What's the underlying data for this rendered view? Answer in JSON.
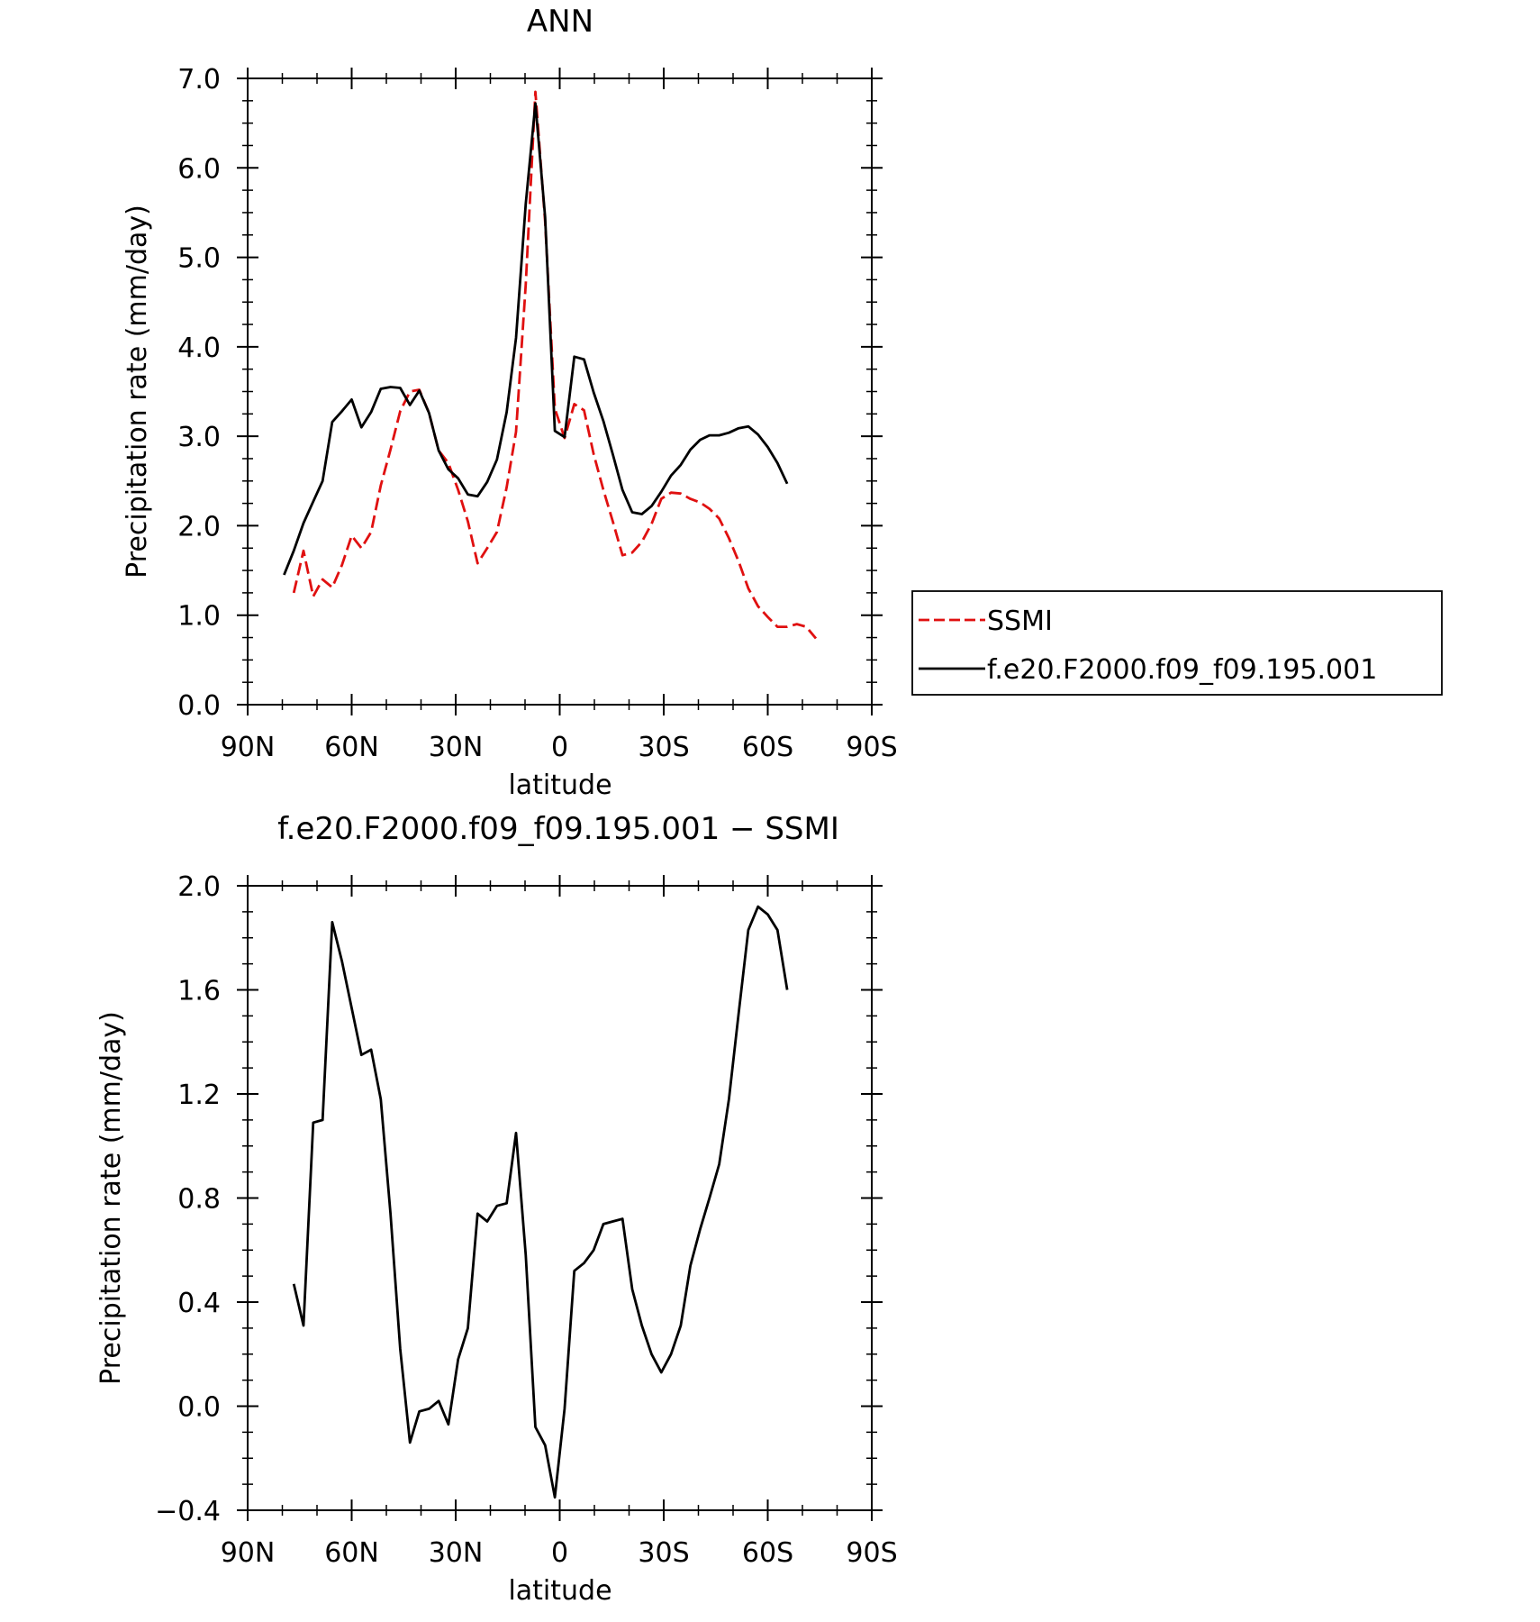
{
  "chart_data": [
    {
      "type": "line",
      "title": "ANN",
      "xlabel": "latitude",
      "ylabel": "Precipitation rate (mm/day)",
      "xlim": [
        90,
        -90
      ],
      "ylim": [
        0,
        7
      ],
      "x_ticks": [
        90,
        60,
        30,
        0,
        -30,
        -60,
        -90
      ],
      "x_tick_labels": [
        "90N",
        "60N",
        "30N",
        "0",
        "30S",
        "60S",
        "90S"
      ],
      "y_ticks": [
        0,
        1,
        2,
        3,
        4,
        5,
        6,
        7
      ],
      "y_tick_labels": [
        "0.0",
        "1.0",
        "2.0",
        "3.0",
        "4.0",
        "5.0",
        "6.0",
        "7.0"
      ],
      "grid": false,
      "legend_position": "right",
      "series": [
        {
          "name": "SSMI",
          "color": "#e01010",
          "dash": "dashed",
          "x": [
            76.7,
            73.9,
            71.1,
            68.4,
            65.6,
            62.8,
            60.0,
            57.2,
            54.4,
            51.6,
            48.8,
            46.0,
            43.2,
            40.5,
            37.7,
            34.9,
            32.1,
            29.3,
            26.5,
            23.7,
            20.9,
            18.1,
            15.3,
            12.6,
            9.8,
            7.0,
            4.2,
            1.4,
            -1.4,
            -4.2,
            -7.0,
            -9.8,
            -12.6,
            -15.3,
            -18.1,
            -20.9,
            -23.7,
            -26.5,
            -29.3,
            -32.1,
            -34.9,
            -37.7,
            -40.5,
            -43.2,
            -46.0,
            -48.8,
            -51.6,
            -54.4,
            -57.2,
            -60.0,
            -62.8,
            -65.6,
            -68.4,
            -71.1,
            -73.9
          ],
          "y": [
            1.25,
            1.72,
            1.21,
            1.4,
            1.31,
            1.56,
            1.89,
            1.75,
            1.93,
            2.45,
            2.85,
            3.28,
            3.5,
            3.52,
            3.26,
            2.84,
            2.7,
            2.4,
            2.05,
            1.58,
            1.75,
            1.93,
            2.43,
            3.05,
            4.7,
            6.85,
            5.4,
            3.31,
            2.98,
            3.36,
            3.29,
            2.8,
            2.4,
            2.05,
            1.67,
            1.7,
            1.82,
            2.02,
            2.3,
            2.37,
            2.36,
            2.3,
            2.26,
            2.19,
            2.08,
            1.86,
            1.6,
            1.3,
            1.1,
            0.98,
            0.87,
            0.87,
            0.9,
            0.87,
            0.74
          ]
        },
        {
          "name": "f.e20.F2000.f09_f09.195.001",
          "color": "#000000",
          "dash": "solid",
          "x": [
            79.5,
            76.7,
            73.9,
            71.1,
            68.4,
            65.6,
            62.8,
            60.0,
            57.2,
            54.4,
            51.6,
            48.8,
            46.0,
            43.2,
            40.5,
            37.7,
            34.9,
            32.1,
            29.3,
            26.5,
            23.7,
            20.9,
            18.1,
            15.3,
            12.6,
            9.8,
            7.0,
            4.2,
            1.4,
            -1.4,
            -4.2,
            -7.0,
            -9.8,
            -12.6,
            -15.3,
            -18.1,
            -20.9,
            -23.7,
            -26.5,
            -29.3,
            -32.1,
            -34.9,
            -37.7,
            -40.5,
            -43.2,
            -46.0,
            -48.8,
            -51.6,
            -54.4,
            -57.2,
            -60.0,
            -62.8,
            -65.6
          ],
          "y": [
            1.45,
            1.72,
            2.03,
            2.27,
            2.5,
            3.16,
            3.28,
            3.41,
            3.1,
            3.27,
            3.53,
            3.55,
            3.54,
            3.35,
            3.51,
            3.26,
            2.84,
            2.63,
            2.53,
            2.35,
            2.33,
            2.49,
            2.74,
            3.27,
            4.1,
            5.6,
            6.72,
            5.45,
            3.06,
            2.99,
            3.89,
            3.86,
            3.49,
            3.17,
            2.8,
            2.4,
            2.15,
            2.13,
            2.22,
            2.38,
            2.56,
            2.68,
            2.85,
            2.96,
            3.01,
            3.01,
            3.04,
            3.09,
            3.11,
            3.02,
            2.88,
            2.7,
            2.47
          ]
        }
      ]
    },
    {
      "type": "line",
      "title": "f.e20.F2000.f09_f09.195.001 − SSMI",
      "xlabel": "latitude",
      "ylabel": "Precipitation rate (mm/day)",
      "xlim": [
        90,
        -90
      ],
      "ylim": [
        -0.4,
        2.0
      ],
      "x_ticks": [
        90,
        60,
        30,
        0,
        -30,
        -60,
        -90
      ],
      "x_tick_labels": [
        "90N",
        "60N",
        "30N",
        "0",
        "30S",
        "60S",
        "90S"
      ],
      "y_ticks": [
        -0.4,
        0.0,
        0.4,
        0.8,
        1.2,
        1.6,
        2.0
      ],
      "y_tick_labels": [
        "−0.4",
        "0.0",
        "0.4",
        "0.8",
        "1.2",
        "1.6",
        "2.0"
      ],
      "grid": false,
      "series": [
        {
          "color": "#000000",
          "dash": "solid",
          "x": [
            76.7,
            73.9,
            71.1,
            68.4,
            65.6,
            62.8,
            60.0,
            57.2,
            54.4,
            51.6,
            48.8,
            46.0,
            43.2,
            40.5,
            37.7,
            34.9,
            32.1,
            29.3,
            26.5,
            23.7,
            20.9,
            18.1,
            15.3,
            12.6,
            9.8,
            7.0,
            4.2,
            1.4,
            -1.4,
            -4.2,
            -7.0,
            -9.8,
            -12.6,
            -15.3,
            -18.1,
            -20.9,
            -23.7,
            -26.5,
            -29.3,
            -32.1,
            -34.9,
            -37.7,
            -40.5,
            -43.2,
            -46.0,
            -48.8,
            -51.6,
            -54.4,
            -57.2,
            -60.0,
            -62.8,
            -65.6
          ],
          "y": [
            0.47,
            0.31,
            1.09,
            1.1,
            1.86,
            1.71,
            1.53,
            1.35,
            1.37,
            1.18,
            0.74,
            0.22,
            -0.14,
            -0.02,
            -0.01,
            0.02,
            -0.07,
            0.18,
            0.3,
            0.74,
            0.71,
            0.77,
            0.78,
            1.05,
            0.58,
            -0.08,
            -0.15,
            -0.35,
            -0.01,
            0.52,
            0.55,
            0.6,
            0.7,
            0.71,
            0.72,
            0.45,
            0.31,
            0.2,
            0.13,
            0.2,
            0.31,
            0.54,
            0.68,
            0.8,
            0.93,
            1.18,
            1.51,
            1.83,
            1.92,
            1.89,
            1.83,
            1.6
          ]
        }
      ]
    }
  ]
}
